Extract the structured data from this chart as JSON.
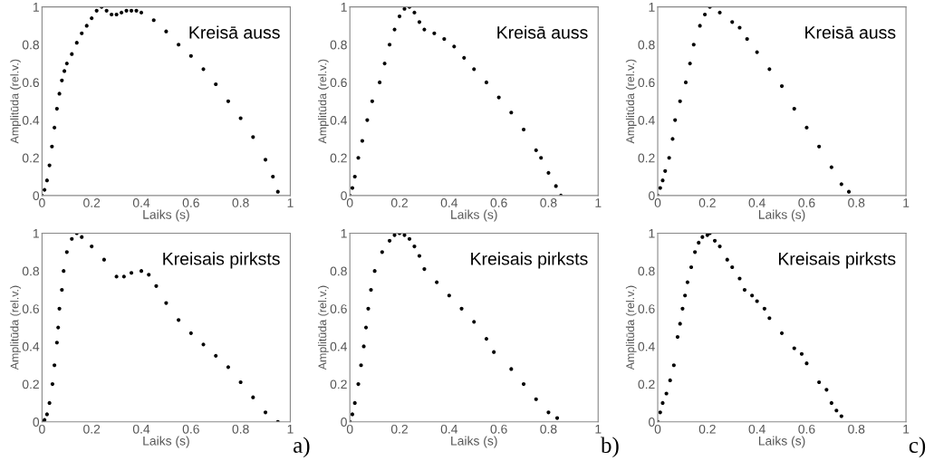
{
  "chart_data": [
    {
      "type": "scatter",
      "xlabel": "Laiks (s)",
      "ylabel": "Amplitūda (rel.v.)",
      "annotations": [
        "Kreisā auss"
      ],
      "xlim": [
        0,
        1
      ],
      "ylim": [
        0,
        1
      ],
      "xticks": [
        0,
        0.2,
        0.4,
        0.6,
        0.8,
        1
      ],
      "yticks": [
        0,
        0.2,
        0.4,
        0.6,
        0.8,
        1
      ],
      "marker": "circle",
      "grid": false,
      "series": [
        {
          "color": "#000000",
          "x": [
            0,
            0.01,
            0.02,
            0.03,
            0.04,
            0.05,
            0.06,
            0.07,
            0.08,
            0.09,
            0.1,
            0.12,
            0.14,
            0.16,
            0.18,
            0.2,
            0.22,
            0.24,
            0.26,
            0.28,
            0.3,
            0.32,
            0.34,
            0.36,
            0.38,
            0.4,
            0.45,
            0.5,
            0.55,
            0.6,
            0.65,
            0.7,
            0.75,
            0.8,
            0.85,
            0.9,
            0.93,
            0.95
          ],
          "values": [
            0,
            0.03,
            0.08,
            0.16,
            0.26,
            0.36,
            0.46,
            0.54,
            0.61,
            0.66,
            0.7,
            0.75,
            0.81,
            0.86,
            0.9,
            0.94,
            0.98,
            1.0,
            0.98,
            0.96,
            0.96,
            0.97,
            0.98,
            0.98,
            0.98,
            0.97,
            0.93,
            0.87,
            0.8,
            0.74,
            0.67,
            0.59,
            0.5,
            0.41,
            0.31,
            0.19,
            0.1,
            0.02
          ]
        }
      ]
    },
    {
      "type": "scatter",
      "xlabel": "Laiks (s)",
      "ylabel": "Amplitūda (rel.v.)",
      "annotations": [
        "Kreisā auss"
      ],
      "xlim": [
        0,
        1
      ],
      "ylim": [
        0,
        1
      ],
      "xticks": [
        0,
        0.2,
        0.4,
        0.6,
        0.8,
        1
      ],
      "yticks": [
        0,
        0.2,
        0.4,
        0.6,
        0.8,
        1
      ],
      "marker": "circle",
      "grid": false,
      "series": [
        {
          "color": "#000000",
          "x": [
            0,
            0.01,
            0.02,
            0.034,
            0.05,
            0.07,
            0.09,
            0.12,
            0.14,
            0.16,
            0.18,
            0.2,
            0.22,
            0.24,
            0.26,
            0.28,
            0.3,
            0.34,
            0.38,
            0.42,
            0.46,
            0.5,
            0.55,
            0.6,
            0.65,
            0.7,
            0.75,
            0.77,
            0.8,
            0.83,
            0.85
          ],
          "values": [
            0,
            0.04,
            0.1,
            0.2,
            0.29,
            0.4,
            0.5,
            0.6,
            0.7,
            0.8,
            0.88,
            0.95,
            0.99,
            1.0,
            0.97,
            0.92,
            0.88,
            0.86,
            0.83,
            0.79,
            0.73,
            0.67,
            0.6,
            0.52,
            0.44,
            0.35,
            0.24,
            0.2,
            0.12,
            0.05,
            0.0
          ]
        }
      ]
    },
    {
      "type": "scatter",
      "xlabel": "Laiks (s)",
      "ylabel": "Amplitūda (rel.v.)",
      "annotations": [
        "Kreisā auss"
      ],
      "xlim": [
        0,
        1
      ],
      "ylim": [
        0,
        1
      ],
      "xticks": [
        0,
        0.2,
        0.4,
        0.6,
        0.8,
        1
      ],
      "yticks": [
        0,
        0.2,
        0.4,
        0.6,
        0.8,
        1
      ],
      "marker": "circle",
      "grid": false,
      "series": [
        {
          "color": "#000000",
          "x": [
            0,
            0.01,
            0.02,
            0.03,
            0.046,
            0.06,
            0.07,
            0.09,
            0.113,
            0.13,
            0.145,
            0.17,
            0.19,
            0.21,
            0.25,
            0.3,
            0.33,
            0.36,
            0.4,
            0.45,
            0.5,
            0.55,
            0.6,
            0.65,
            0.7,
            0.74,
            0.77
          ],
          "values": [
            0,
            0.04,
            0.08,
            0.13,
            0.2,
            0.3,
            0.4,
            0.5,
            0.6,
            0.7,
            0.8,
            0.9,
            0.96,
            1.0,
            0.97,
            0.92,
            0.89,
            0.83,
            0.76,
            0.67,
            0.58,
            0.46,
            0.36,
            0.26,
            0.15,
            0.06,
            0.02
          ]
        }
      ]
    },
    {
      "type": "scatter",
      "xlabel": "Laiks (s)",
      "ylabel": "Amplitūda (rel.v.)",
      "annotations": [
        "Kreisais pirksts",
        "a)"
      ],
      "xlim": [
        0,
        1
      ],
      "ylim": [
        0,
        1
      ],
      "xticks": [
        0,
        0.2,
        0.4,
        0.6,
        0.8,
        1
      ],
      "yticks": [
        0,
        0.2,
        0.4,
        0.6,
        0.8,
        1
      ],
      "marker": "circle",
      "grid": false,
      "series": [
        {
          "color": "#000000",
          "x": [
            0,
            0.01,
            0.02,
            0.03,
            0.042,
            0.05,
            0.06,
            0.065,
            0.07,
            0.08,
            0.087,
            0.1,
            0.12,
            0.14,
            0.16,
            0.2,
            0.25,
            0.3,
            0.33,
            0.36,
            0.4,
            0.43,
            0.46,
            0.5,
            0.55,
            0.6,
            0.65,
            0.7,
            0.75,
            0.8,
            0.85,
            0.9,
            0.95
          ],
          "values": [
            0,
            0.01,
            0.04,
            0.1,
            0.2,
            0.3,
            0.42,
            0.5,
            0.6,
            0.7,
            0.8,
            0.9,
            0.97,
            1.0,
            0.98,
            0.93,
            0.86,
            0.77,
            0.77,
            0.79,
            0.8,
            0.78,
            0.72,
            0.63,
            0.54,
            0.47,
            0.41,
            0.35,
            0.29,
            0.21,
            0.13,
            0.05,
            0.0
          ]
        }
      ]
    },
    {
      "type": "scatter",
      "xlabel": "Laiks (s)",
      "ylabel": "Amplitūda (rel.v.)",
      "annotations": [
        "Kreisais pirksts",
        "b)"
      ],
      "xlim": [
        0,
        1
      ],
      "ylim": [
        0,
        1
      ],
      "xticks": [
        0,
        0.2,
        0.4,
        0.6,
        0.8,
        1
      ],
      "yticks": [
        0,
        0.2,
        0.4,
        0.6,
        0.8,
        1
      ],
      "marker": "circle",
      "grid": false,
      "series": [
        {
          "color": "#000000",
          "x": [
            0,
            0.01,
            0.02,
            0.034,
            0.045,
            0.056,
            0.065,
            0.074,
            0.085,
            0.1,
            0.13,
            0.16,
            0.18,
            0.2,
            0.22,
            0.24,
            0.26,
            0.28,
            0.3,
            0.35,
            0.4,
            0.45,
            0.5,
            0.55,
            0.58,
            0.65,
            0.7,
            0.75,
            0.8,
            0.835
          ],
          "values": [
            0,
            0.04,
            0.1,
            0.2,
            0.3,
            0.4,
            0.5,
            0.6,
            0.7,
            0.8,
            0.9,
            0.96,
            0.99,
            1.0,
            0.99,
            0.97,
            0.93,
            0.88,
            0.81,
            0.74,
            0.67,
            0.6,
            0.53,
            0.44,
            0.37,
            0.28,
            0.2,
            0.12,
            0.05,
            0.02
          ]
        }
      ]
    },
    {
      "type": "scatter",
      "xlabel": "Laiks (s)",
      "ylabel": "Amplitūda (rel.v.)",
      "annotations": [
        "Kreisais pirksts",
        "c)"
      ],
      "xlim": [
        0,
        1
      ],
      "ylim": [
        0,
        1
      ],
      "xticks": [
        0,
        0.2,
        0.4,
        0.6,
        0.8,
        1
      ],
      "yticks": [
        0,
        0.2,
        0.4,
        0.6,
        0.8,
        1
      ],
      "marker": "circle",
      "grid": false,
      "series": [
        {
          "color": "#000000",
          "x": [
            0,
            0.01,
            0.02,
            0.035,
            0.05,
            0.065,
            0.08,
            0.09,
            0.1,
            0.11,
            0.12,
            0.135,
            0.15,
            0.165,
            0.18,
            0.2,
            0.21,
            0.23,
            0.25,
            0.28,
            0.3,
            0.33,
            0.35,
            0.38,
            0.4,
            0.43,
            0.45,
            0.5,
            0.55,
            0.58,
            0.6,
            0.65,
            0.68,
            0.7,
            0.72,
            0.74
          ],
          "values": [
            0,
            0.05,
            0.1,
            0.15,
            0.22,
            0.3,
            0.45,
            0.52,
            0.6,
            0.67,
            0.74,
            0.82,
            0.9,
            0.95,
            0.98,
            0.99,
            1.0,
            0.96,
            0.93,
            0.86,
            0.82,
            0.76,
            0.7,
            0.67,
            0.64,
            0.6,
            0.55,
            0.47,
            0.39,
            0.36,
            0.31,
            0.21,
            0.17,
            0.1,
            0.06,
            0.03
          ]
        }
      ]
    }
  ]
}
